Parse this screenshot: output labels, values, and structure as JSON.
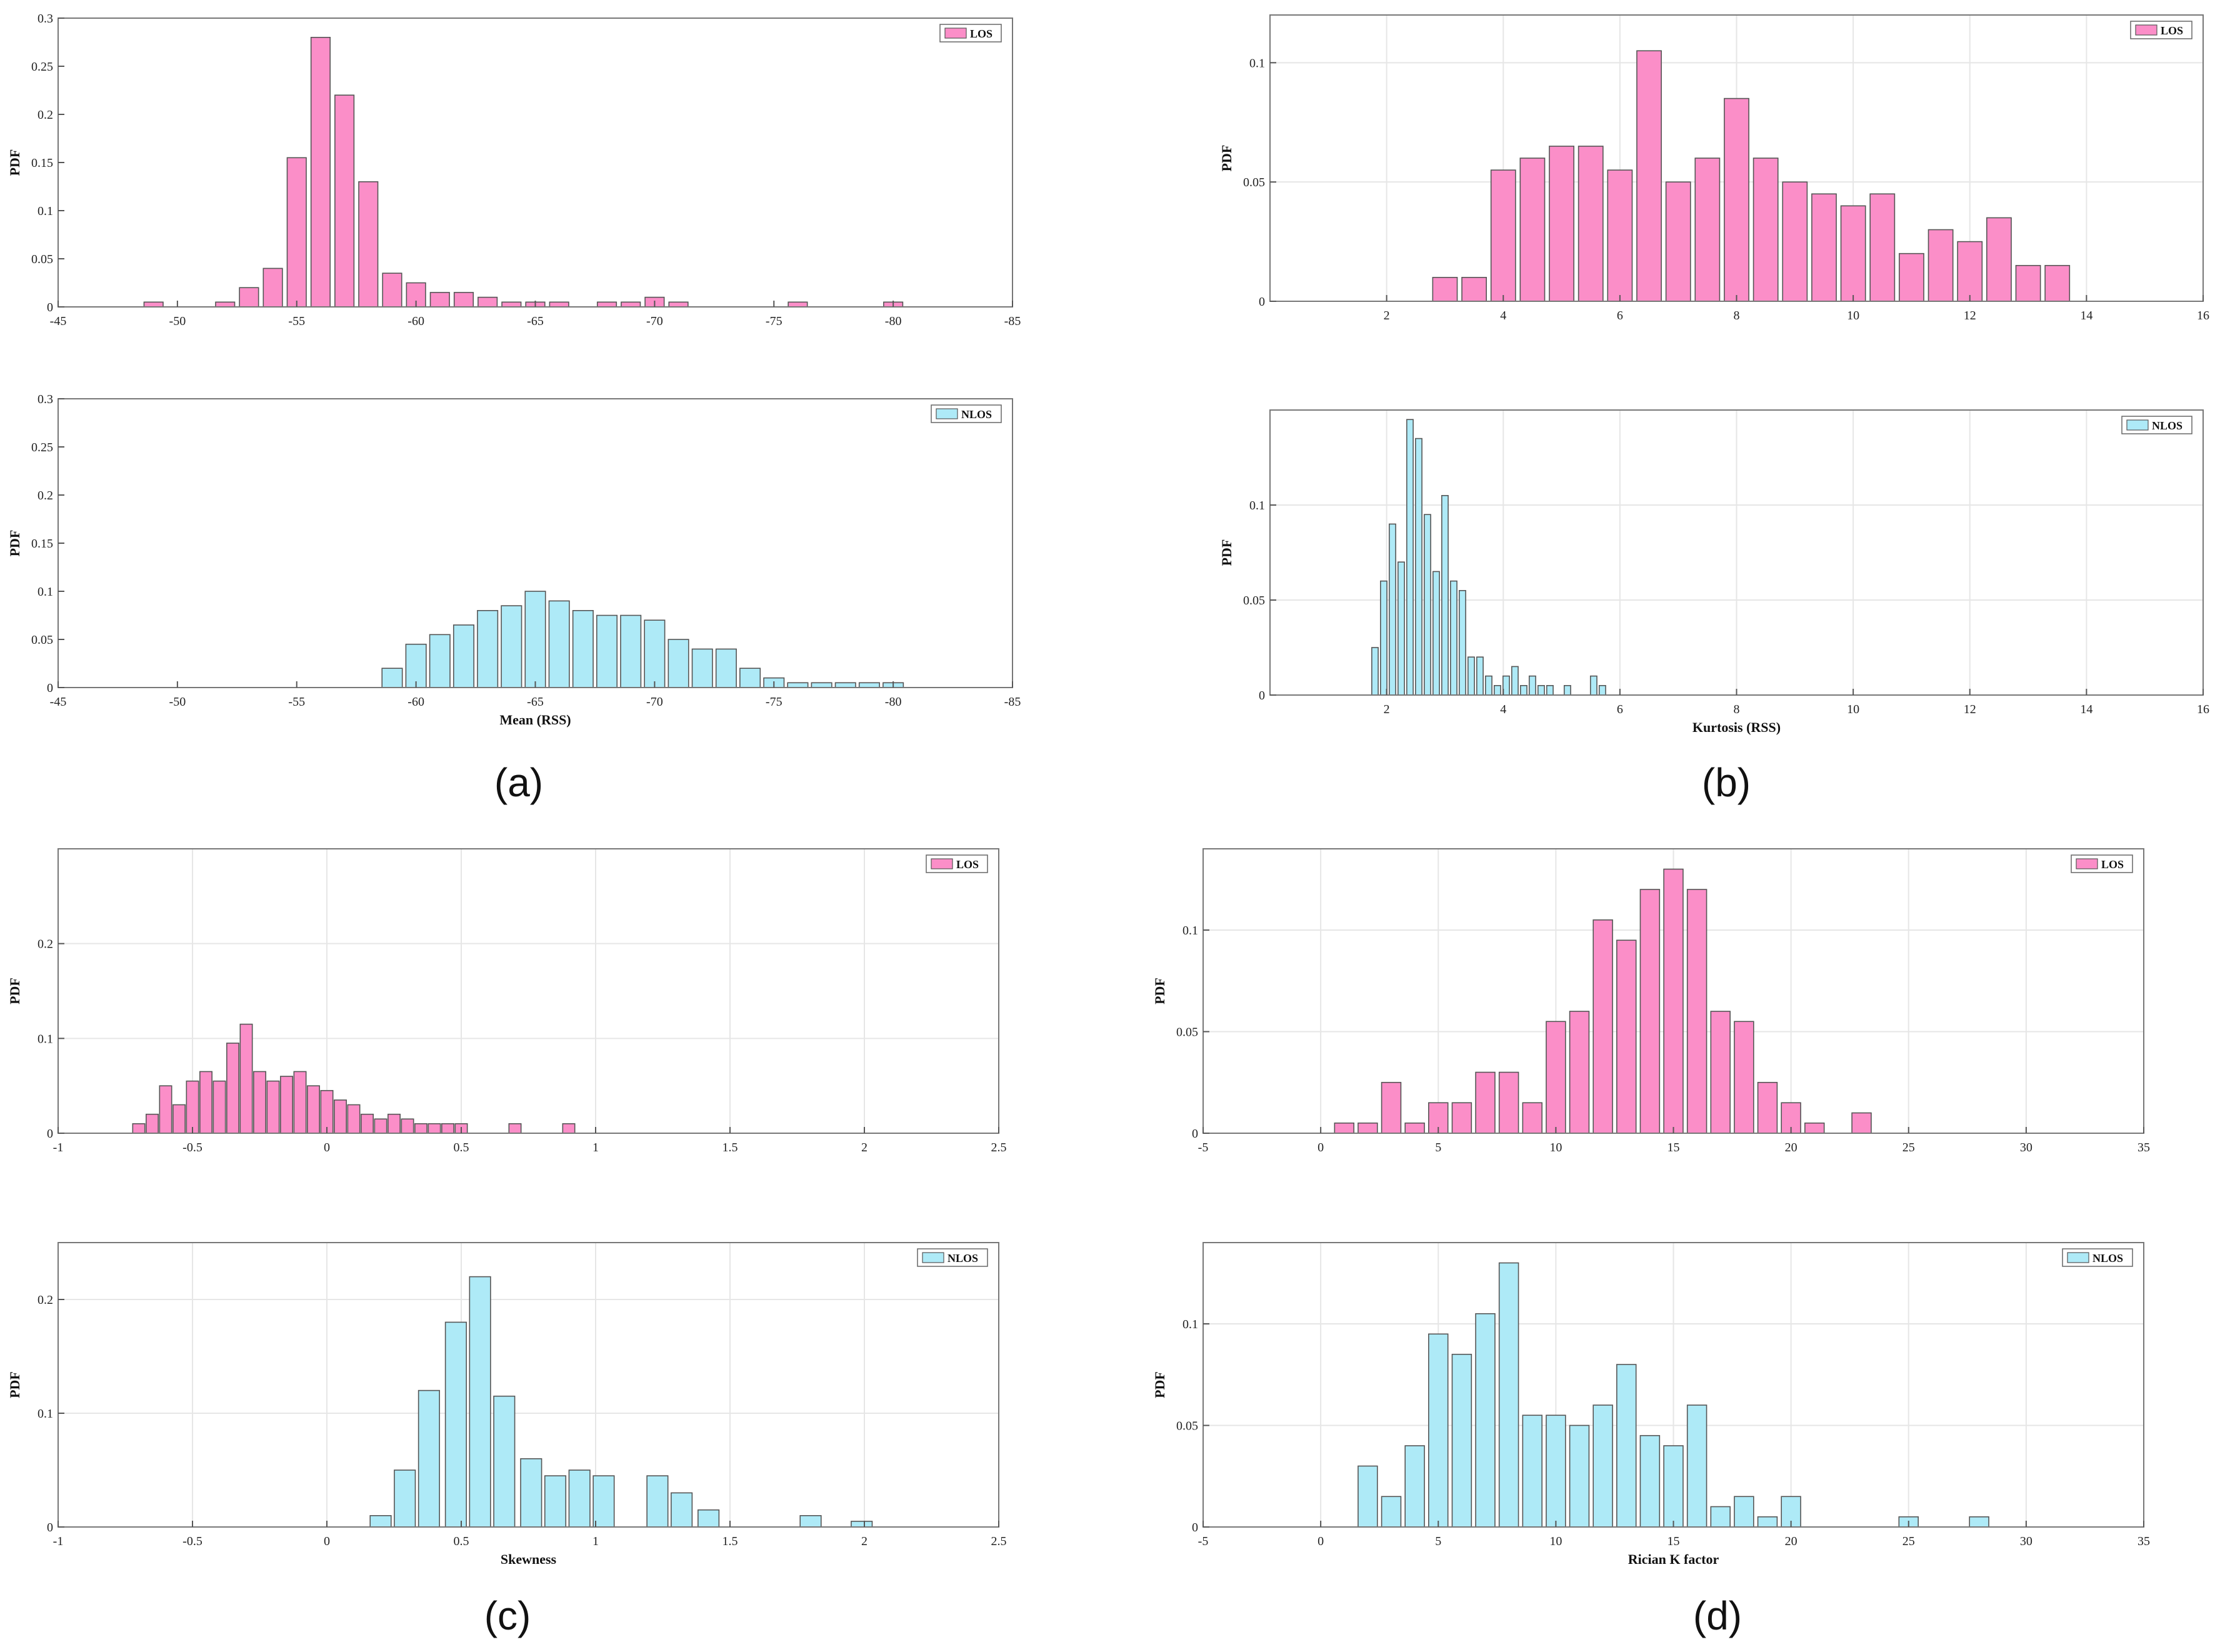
{
  "panel_labels": {
    "a": "(a)",
    "b": "(b)",
    "c": "(c)",
    "d": "(d)"
  },
  "colors": {
    "los": "#fb8ec8",
    "nlos": "#aeeaf7",
    "edge": "#555555",
    "grid": "#e6e6e6"
  },
  "chart_data": [
    {
      "id": "a-top",
      "type": "bar",
      "panel": "a",
      "series": "LOS",
      "legend": "LOS",
      "legend_position": "top-right",
      "xlabel": "",
      "ylabel": "PDF",
      "xlim": [
        -45,
        -85
      ],
      "ylim": [
        0,
        0.3
      ],
      "xticks": [
        -45,
        -50,
        -55,
        -60,
        -65,
        -70,
        -75,
        -80,
        -85
      ],
      "xtick_labels": [
        "-45",
        "-50",
        "-55",
        "-60",
        "-65",
        "-70",
        "-75",
        "-80",
        "-85"
      ],
      "yticks": [
        0,
        0.05,
        0.1,
        0.15,
        0.2,
        0.25,
        0.3
      ],
      "ytick_labels": [
        "0",
        "0.05",
        "0.1",
        "0.15",
        "0.2",
        "0.25",
        "0.3"
      ],
      "grid": false,
      "bar_width": 0.8,
      "x": [
        -49,
        -52,
        -53,
        -54,
        -55,
        -56,
        -57,
        -58,
        -59,
        -60,
        -61,
        -62,
        -63,
        -64,
        -65,
        -66,
        -68,
        -69,
        -70,
        -71,
        -76,
        -80
      ],
      "values": [
        0.005,
        0.005,
        0.02,
        0.04,
        0.155,
        0.28,
        0.22,
        0.13,
        0.035,
        0.025,
        0.015,
        0.015,
        0.01,
        0.005,
        0.005,
        0.005,
        0.005,
        0.005,
        0.01,
        0.005,
        0.005,
        0.005
      ]
    },
    {
      "id": "a-bottom",
      "type": "bar",
      "panel": "a",
      "series": "NLOS",
      "legend": "NLOS",
      "legend_position": "top-right",
      "xlabel": "Mean (RSS)",
      "ylabel": "PDF",
      "xlim": [
        -45,
        -85
      ],
      "ylim": [
        0,
        0.3
      ],
      "xticks": [
        -45,
        -50,
        -55,
        -60,
        -65,
        -70,
        -75,
        -80,
        -85
      ],
      "xtick_labels": [
        "-45",
        "-50",
        "-55",
        "-60",
        "-65",
        "-70",
        "-75",
        "-80",
        "-85"
      ],
      "yticks": [
        0,
        0.05,
        0.1,
        0.15,
        0.2,
        0.25,
        0.3
      ],
      "ytick_labels": [
        "0",
        "0.05",
        "0.1",
        "0.15",
        "0.2",
        "0.25",
        "0.3"
      ],
      "grid": false,
      "bar_width": 0.85,
      "x": [
        -59,
        -60,
        -61,
        -62,
        -63,
        -64,
        -65,
        -66,
        -67,
        -68,
        -69,
        -70,
        -71,
        -72,
        -73,
        -74,
        -75,
        -76,
        -77,
        -78,
        -79,
        -80
      ],
      "values": [
        0.02,
        0.045,
        0.055,
        0.065,
        0.08,
        0.085,
        0.1,
        0.09,
        0.08,
        0.075,
        0.075,
        0.07,
        0.05,
        0.04,
        0.04,
        0.02,
        0.01,
        0.005,
        0.005,
        0.005,
        0.005,
        0.005
      ]
    },
    {
      "id": "b-top",
      "type": "bar",
      "panel": "b",
      "series": "LOS",
      "legend": "LOS",
      "legend_position": "top-right",
      "xlabel": "",
      "ylabel": "PDF",
      "xlim": [
        0,
        16
      ],
      "ylim": [
        0,
        0.12
      ],
      "xticks": [
        2,
        4,
        6,
        8,
        10,
        12,
        14,
        16
      ],
      "xtick_labels": [
        "2",
        "4",
        "6",
        "8",
        "10",
        "12",
        "14",
        "16"
      ],
      "yticks": [
        0,
        0.05,
        0.1
      ],
      "ytick_labels": [
        "0",
        "0.05",
        "0.1"
      ],
      "grid": true,
      "bar_width": 0.42,
      "x": [
        3.0,
        3.5,
        4.0,
        4.5,
        5.0,
        5.5,
        6.0,
        6.5,
        7.0,
        7.5,
        8.0,
        8.5,
        9.0,
        9.5,
        10.0,
        10.5,
        11.0,
        11.5,
        12.0,
        12.5,
        13.0,
        13.5
      ],
      "values": [
        0.01,
        0.01,
        0.055,
        0.06,
        0.065,
        0.065,
        0.055,
        0.105,
        0.05,
        0.06,
        0.085,
        0.06,
        0.05,
        0.045,
        0.04,
        0.045,
        0.02,
        0.03,
        0.025,
        0.035,
        0.015,
        0.015
      ]
    },
    {
      "id": "b-bottom",
      "type": "bar",
      "panel": "b",
      "series": "NLOS",
      "legend": "NLOS",
      "legend_position": "top-right",
      "xlabel": "Kurtosis (RSS)",
      "ylabel": "PDF",
      "xlim": [
        0,
        16
      ],
      "ylim": [
        0,
        0.15
      ],
      "xticks": [
        2,
        4,
        6,
        8,
        10,
        12,
        14,
        16
      ],
      "xtick_labels": [
        "2",
        "4",
        "6",
        "8",
        "10",
        "12",
        "14",
        "16"
      ],
      "yticks": [
        0,
        0.05,
        0.1
      ],
      "ytick_labels": [
        "0",
        "0.05",
        "0.1"
      ],
      "grid": true,
      "bar_width": 0.11,
      "x": [
        1.8,
        1.95,
        2.1,
        2.25,
        2.4,
        2.55,
        2.7,
        2.85,
        3.0,
        3.15,
        3.3,
        3.45,
        3.6,
        3.75,
        3.9,
        4.05,
        4.2,
        4.35,
        4.5,
        4.65,
        4.8,
        5.1,
        5.55,
        5.7
      ],
      "values": [
        0.025,
        0.06,
        0.09,
        0.07,
        0.145,
        0.135,
        0.095,
        0.065,
        0.105,
        0.06,
        0.055,
        0.02,
        0.02,
        0.01,
        0.005,
        0.01,
        0.015,
        0.005,
        0.01,
        0.005,
        0.005,
        0.005,
        0.01,
        0.005
      ]
    },
    {
      "id": "c-top",
      "type": "bar",
      "panel": "c",
      "series": "LOS",
      "legend": "LOS",
      "legend_position": "top-right",
      "xlabel": "",
      "ylabel": "PDF",
      "xlim": [
        -1,
        2.5
      ],
      "ylim": [
        0,
        0.3
      ],
      "xticks": [
        -1,
        -0.5,
        0,
        0.5,
        1,
        1.5,
        2,
        2.5
      ],
      "xtick_labels": [
        "-1",
        "-0.5",
        "0",
        "0.5",
        "1",
        "1.5",
        "2",
        "2.5"
      ],
      "yticks": [
        0,
        0.1,
        0.2
      ],
      "ytick_labels": [
        "0",
        "0.1",
        "0.2"
      ],
      "grid": true,
      "bar_width": 0.045,
      "x": [
        -0.7,
        -0.65,
        -0.6,
        -0.55,
        -0.5,
        -0.45,
        -0.4,
        -0.35,
        -0.3,
        -0.25,
        -0.2,
        -0.15,
        -0.1,
        -0.05,
        0.0,
        0.05,
        0.1,
        0.15,
        0.2,
        0.25,
        0.3,
        0.35,
        0.4,
        0.45,
        0.5,
        0.7,
        0.9
      ],
      "values": [
        0.01,
        0.02,
        0.05,
        0.03,
        0.055,
        0.065,
        0.055,
        0.095,
        0.115,
        0.065,
        0.055,
        0.06,
        0.065,
        0.05,
        0.045,
        0.035,
        0.03,
        0.02,
        0.015,
        0.02,
        0.015,
        0.01,
        0.01,
        0.01,
        0.01,
        0.01,
        0.01
      ]
    },
    {
      "id": "c-bottom",
      "type": "bar",
      "panel": "c",
      "series": "NLOS",
      "legend": "NLOS",
      "legend_position": "top-right",
      "xlabel": "Skewness",
      "ylabel": "PDF",
      "xlim": [
        -1,
        2.5
      ],
      "ylim": [
        0,
        0.25
      ],
      "xticks": [
        -1,
        -0.5,
        0,
        0.5,
        1,
        1.5,
        2,
        2.5
      ],
      "xtick_labels": [
        "-1",
        "-0.5",
        "0",
        "0.5",
        "1",
        "1.5",
        "2",
        "2.5"
      ],
      "yticks": [
        0,
        0.1,
        0.2
      ],
      "ytick_labels": [
        "0",
        "0.1",
        "0.2"
      ],
      "grid": true,
      "bar_width": 0.078,
      "x": [
        0.2,
        0.29,
        0.38,
        0.48,
        0.57,
        0.66,
        0.76,
        0.85,
        0.94,
        1.03,
        1.23,
        1.32,
        1.42,
        1.8,
        1.99
      ],
      "values": [
        0.01,
        0.05,
        0.12,
        0.18,
        0.22,
        0.115,
        0.06,
        0.045,
        0.05,
        0.045,
        0.045,
        0.03,
        0.015,
        0.01,
        0.005
      ]
    },
    {
      "id": "d-top",
      "type": "bar",
      "panel": "d",
      "series": "LOS",
      "legend": "LOS",
      "legend_position": "top-right",
      "xlabel": "",
      "ylabel": "PDF",
      "xlim": [
        -5,
        35
      ],
      "ylim": [
        0,
        0.14
      ],
      "xticks": [
        -5,
        0,
        5,
        10,
        15,
        20,
        25,
        30,
        35
      ],
      "xtick_labels": [
        "-5",
        "0",
        "5",
        "10",
        "15",
        "20",
        "25",
        "30",
        "35"
      ],
      "yticks": [
        0,
        0.05,
        0.1
      ],
      "ytick_labels": [
        "0",
        "0.05",
        "0.1"
      ],
      "grid": true,
      "bar_width": 0.82,
      "x": [
        1,
        2,
        3,
        4,
        5,
        6,
        7,
        8,
        9,
        10,
        11,
        12,
        13,
        14,
        15,
        16,
        17,
        18,
        19,
        20,
        21,
        23
      ],
      "values": [
        0.005,
        0.005,
        0.025,
        0.005,
        0.015,
        0.015,
        0.03,
        0.03,
        0.015,
        0.055,
        0.06,
        0.105,
        0.095,
        0.12,
        0.13,
        0.12,
        0.06,
        0.055,
        0.025,
        0.015,
        0.005,
        0.01
      ]
    },
    {
      "id": "d-bottom",
      "type": "bar",
      "panel": "d",
      "series": "NLOS",
      "legend": "NLOS",
      "legend_position": "top-right",
      "xlabel": "Rician K factor",
      "ylabel": "PDF",
      "xlim": [
        -5,
        35
      ],
      "ylim": [
        0,
        0.14
      ],
      "xticks": [
        -5,
        0,
        5,
        10,
        15,
        20,
        25,
        30,
        35
      ],
      "xtick_labels": [
        "-5",
        "0",
        "5",
        "10",
        "15",
        "20",
        "25",
        "30",
        "35"
      ],
      "yticks": [
        0,
        0.05,
        0.1
      ],
      "ytick_labels": [
        "0",
        "0.05",
        "0.1"
      ],
      "grid": true,
      "bar_width": 0.82,
      "x": [
        2,
        3,
        4,
        5,
        6,
        7,
        8,
        9,
        10,
        11,
        12,
        13,
        14,
        15,
        16,
        17,
        18,
        19,
        20,
        25,
        28
      ],
      "values": [
        0.03,
        0.015,
        0.04,
        0.095,
        0.085,
        0.105,
        0.13,
        0.055,
        0.055,
        0.05,
        0.06,
        0.08,
        0.045,
        0.04,
        0.06,
        0.01,
        0.015,
        0.005,
        0.015,
        0.005,
        0.005
      ]
    }
  ]
}
